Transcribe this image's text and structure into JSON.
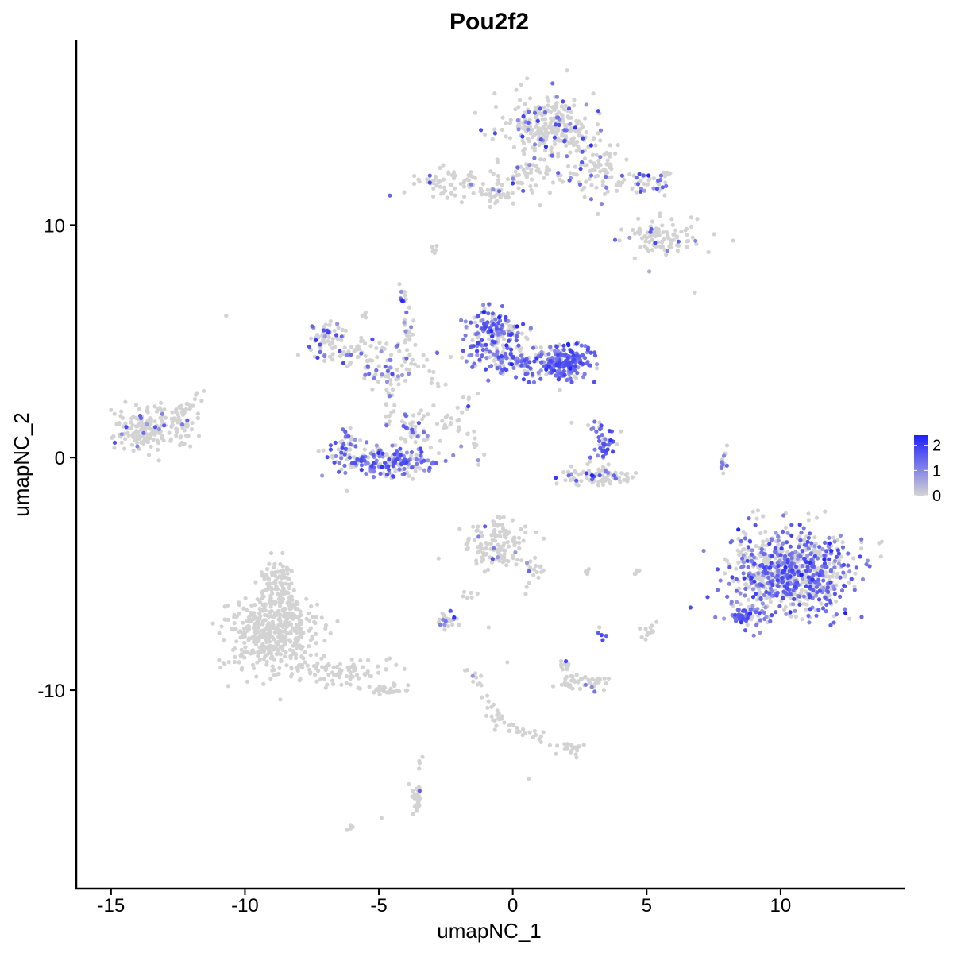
{
  "chart_data": {
    "type": "scatter",
    "title": "Pou2f2",
    "xlabel": "umapNC_1",
    "ylabel": "umapNC_2",
    "xlim": [
      -16.3,
      14.6
    ],
    "ylim": [
      -18.5,
      17.9
    ],
    "x_ticks": [
      {
        "value": -15,
        "label": "-15"
      },
      {
        "value": -10,
        "label": "-10"
      },
      {
        "value": -5,
        "label": "-5"
      },
      {
        "value": 0,
        "label": "0"
      },
      {
        "value": 5,
        "label": "5"
      },
      {
        "value": 10,
        "label": "10"
      }
    ],
    "y_ticks": [
      {
        "value": 10,
        "label": "10"
      },
      {
        "value": 0,
        "label": "0"
      },
      {
        "value": -10,
        "label": "-10"
      }
    ],
    "grid": false,
    "legend": {
      "placement": "right",
      "type": "colorbar",
      "range": [
        0,
        2.4
      ],
      "ticks": [
        {
          "value": 2,
          "label": "2"
        },
        {
          "value": 1,
          "label": "1"
        },
        {
          "value": 0,
          "label": "0"
        }
      ],
      "low_color": "#d3d3d3",
      "high_color": "#1f1fff"
    },
    "colors": {
      "low": "#d3d3d3",
      "high": "#1f1fff",
      "axis": "#000000"
    },
    "clusters": [
      {
        "cx": 1.5,
        "cy": 14.2,
        "sx": 1.2,
        "sy": 1.0,
        "n": 300,
        "expr": 0.12
      },
      {
        "cx": 0.5,
        "cy": 12.0,
        "sx": 1.0,
        "sy": 0.6,
        "n": 60,
        "expr": 0.15
      },
      {
        "cx": 3.3,
        "cy": 12.2,
        "sx": 0.8,
        "sy": 0.7,
        "n": 80,
        "expr": 0.15
      },
      {
        "cx": 5.3,
        "cy": 11.8,
        "sx": 0.6,
        "sy": 0.4,
        "n": 40,
        "expr": 0.3
      },
      {
        "cx": 5.6,
        "cy": 9.5,
        "sx": 0.9,
        "sy": 0.5,
        "n": 100,
        "expr": 0.12
      },
      {
        "cx": -2.5,
        "cy": 11.7,
        "sx": 0.9,
        "sy": 0.45,
        "n": 70,
        "expr": 0.08
      },
      {
        "cx": -0.6,
        "cy": 11.3,
        "sx": 0.7,
        "sy": 0.2,
        "n": 30,
        "expr": 0.1
      },
      {
        "cx": -13.6,
        "cy": 1.2,
        "sx": 0.9,
        "sy": 0.65,
        "n": 200,
        "expr": 0.05
      },
      {
        "cx": -12.2,
        "cy": 1.6,
        "sx": 0.4,
        "sy": 0.6,
        "n": 25,
        "expr": 0.04
      },
      {
        "cx": -7.0,
        "cy": 5.2,
        "sx": 0.45,
        "sy": 0.5,
        "n": 55,
        "expr": 0.35
      },
      {
        "cx": -5.8,
        "cy": 4.6,
        "sx": 1.0,
        "sy": 0.5,
        "n": 55,
        "expr": 0.22
      },
      {
        "cx": -4.8,
        "cy": 3.6,
        "sx": 0.7,
        "sy": 0.4,
        "n": 45,
        "expr": 0.28
      },
      {
        "cx": -3.8,
        "cy": 4.5,
        "sx": 0.8,
        "sy": 0.6,
        "n": 25,
        "expr": 0.15
      },
      {
        "cx": -4.6,
        "cy": -0.2,
        "sx": 1.3,
        "sy": 0.4,
        "n": 200,
        "expr": 0.6
      },
      {
        "cx": -3.7,
        "cy": 1.1,
        "sx": 0.35,
        "sy": 0.55,
        "n": 40,
        "expr": 0.4
      },
      {
        "cx": -6.2,
        "cy": 0.6,
        "sx": 0.35,
        "sy": 0.5,
        "n": 40,
        "expr": 0.55
      },
      {
        "cx": -0.7,
        "cy": 5.3,
        "sx": 0.7,
        "sy": 0.8,
        "n": 190,
        "expr": 0.62
      },
      {
        "cx": 0.5,
        "cy": 4.1,
        "sx": 1.2,
        "sy": 0.45,
        "n": 130,
        "expr": 0.6
      },
      {
        "cx": 1.9,
        "cy": 4.1,
        "sx": 0.65,
        "sy": 0.5,
        "n": 190,
        "expr": 0.78
      },
      {
        "cx": 3.3,
        "cy": 0.7,
        "sx": 0.4,
        "sy": 0.6,
        "n": 45,
        "expr": 0.75
      },
      {
        "cx": 3.3,
        "cy": -0.8,
        "sx": 1.0,
        "sy": 0.3,
        "n": 90,
        "expr": 0.12
      },
      {
        "cx": 10.4,
        "cy": -4.9,
        "sx": 1.5,
        "sy": 1.25,
        "n": 780,
        "expr": 0.5
      },
      {
        "cx": 8.8,
        "cy": -6.8,
        "sx": 0.5,
        "sy": 0.25,
        "n": 70,
        "expr": 0.6
      },
      {
        "cx": -9.0,
        "cy": -7.6,
        "sx": 1.1,
        "sy": 1.1,
        "n": 450,
        "expr": 0.0
      },
      {
        "cx": -8.7,
        "cy": -5.7,
        "sx": 0.5,
        "sy": 0.9,
        "n": 110,
        "expr": 0.0
      },
      {
        "cx": -6.3,
        "cy": -9.2,
        "sx": 1.2,
        "sy": 0.4,
        "n": 80,
        "expr": 0.0
      },
      {
        "cx": -4.6,
        "cy": -10.0,
        "sx": 0.5,
        "sy": 0.2,
        "n": 25,
        "expr": 0.0
      },
      {
        "cx": -0.7,
        "cy": -3.7,
        "sx": 0.8,
        "sy": 0.7,
        "n": 130,
        "expr": 0.06
      },
      {
        "cx": 0.8,
        "cy": -4.8,
        "sx": 0.3,
        "sy": 0.4,
        "n": 20,
        "expr": 0.08
      },
      {
        "cx": -2.5,
        "cy": -7.0,
        "sx": 0.3,
        "sy": 0.25,
        "n": 30,
        "expr": 0.3
      },
      {
        "cx": 2.5,
        "cy": -9.6,
        "sx": 0.6,
        "sy": 0.25,
        "n": 45,
        "expr": 0.1
      },
      {
        "cx": 2.0,
        "cy": -8.9,
        "sx": 0.2,
        "sy": 0.15,
        "n": 10,
        "expr": 0.1
      },
      {
        "cx": 2.2,
        "cy": -12.5,
        "sx": 0.3,
        "sy": 0.2,
        "n": 20,
        "expr": 0.05
      },
      {
        "cx": -3.6,
        "cy": -14.7,
        "sx": 0.2,
        "sy": 0.5,
        "n": 30,
        "expr": 0.1
      },
      {
        "cx": 5.0,
        "cy": -7.5,
        "sx": 0.2,
        "sy": 0.25,
        "n": 15,
        "expr": 0.05
      },
      {
        "cx": 7.9,
        "cy": -0.3,
        "sx": 0.12,
        "sy": 0.35,
        "n": 15,
        "expr": 0.3
      },
      {
        "cx": 3.3,
        "cy": -7.6,
        "sx": 0.1,
        "sy": 0.15,
        "n": 5,
        "expr": 0.7
      },
      {
        "cx": 2.8,
        "cy": -4.9,
        "sx": 0.2,
        "sy": 0.1,
        "n": 6,
        "expr": 0.0
      },
      {
        "cx": -2.9,
        "cy": 8.8,
        "sx": 0.1,
        "sy": 0.2,
        "n": 6,
        "expr": 0.0
      }
    ],
    "trails": [
      {
        "from": [
          -13.0,
          1.4
        ],
        "to": [
          -11.6,
          2.8
        ],
        "n": 18,
        "expr": 0.02,
        "spread": 0.15
      },
      {
        "from": [
          -4.2,
          7.4
        ],
        "to": [
          -3.8,
          4.8
        ],
        "n": 28,
        "expr": 0.2,
        "spread": 0.1
      },
      {
        "from": [
          -4.6,
          3.2
        ],
        "to": [
          -4.6,
          1.3
        ],
        "n": 18,
        "expr": 0.1,
        "spread": 0.12
      },
      {
        "from": [
          -3.0,
          3.9
        ],
        "to": [
          -2.9,
          2.3
        ],
        "n": 8,
        "expr": 0.0,
        "spread": 0.2
      },
      {
        "from": [
          -2.6,
          1.8
        ],
        "to": [
          -1.4,
          0.7
        ],
        "n": 10,
        "expr": 0.0,
        "spread": 0.15
      },
      {
        "from": [
          -1.4,
          0.7
        ],
        "to": [
          -1.1,
          -0.3
        ],
        "n": 8,
        "expr": 0.2,
        "spread": 0.1
      },
      {
        "from": [
          -1.5,
          2.8
        ],
        "to": [
          -2.3,
          1.3
        ],
        "n": 12,
        "expr": 0.05,
        "spread": 0.15
      },
      {
        "from": [
          -3.4,
          1.9
        ],
        "to": [
          -2.4,
          1.3
        ],
        "n": 8,
        "expr": 0.0,
        "spread": 0.1
      },
      {
        "from": [
          -1.7,
          -9.1
        ],
        "to": [
          -0.4,
          -11.5
        ],
        "n": 28,
        "expr": 0.05,
        "spread": 0.12
      },
      {
        "from": [
          -0.4,
          -11.5
        ],
        "to": [
          1.6,
          -12.3
        ],
        "n": 18,
        "expr": 0.05,
        "spread": 0.12
      },
      {
        "from": [
          -2.0,
          -6.0
        ],
        "to": [
          -1.5,
          -5.8
        ],
        "n": 6,
        "expr": 0.0,
        "spread": 0.1
      },
      {
        "from": [
          4.2,
          -4.9
        ],
        "to": [
          4.8,
          -4.9
        ],
        "n": 6,
        "expr": 0.0,
        "spread": 0.05
      },
      {
        "from": [
          -3.4,
          -12.6
        ],
        "to": [
          -3.5,
          -13.4
        ],
        "n": 4,
        "expr": 0.0,
        "spread": 0.05
      },
      {
        "from": [
          -6.2,
          -16.0
        ],
        "to": [
          -5.9,
          -15.8
        ],
        "n": 5,
        "expr": 0.0,
        "spread": 0.05
      },
      {
        "from": [
          -5.7,
          6.0
        ],
        "to": [
          -5.5,
          6.3
        ],
        "n": 4,
        "expr": 0.0,
        "spread": 0.05
      },
      {
        "from": [
          -0.8,
          -11.7
        ],
        "to": [
          0.6,
          -11.8
        ],
        "n": 6,
        "expr": 0.0,
        "spread": 0.1
      }
    ],
    "singletons": [
      {
        "x": -10.7,
        "y": 6.1,
        "expr": 0.0
      },
      {
        "x": 6.8,
        "y": 7.1,
        "expr": 0.0
      },
      {
        "x": 5.1,
        "y": 8.0,
        "expr": 0.2
      },
      {
        "x": -0.9,
        "y": -7.3,
        "expr": 0.0
      },
      {
        "x": -0.2,
        "y": -8.8,
        "expr": 0.0
      },
      {
        "x": 0.6,
        "y": -13.8,
        "expr": 0.0
      },
      {
        "x": -4.9,
        "y": -15.5,
        "expr": 0.0
      },
      {
        "x": 5.5,
        "y": 10.5,
        "expr": 0.0
      },
      {
        "x": 2.2,
        "y": 1.5,
        "expr": 0.0
      },
      {
        "x": -3.2,
        "y": 0.8,
        "expr": 0.0
      }
    ]
  }
}
